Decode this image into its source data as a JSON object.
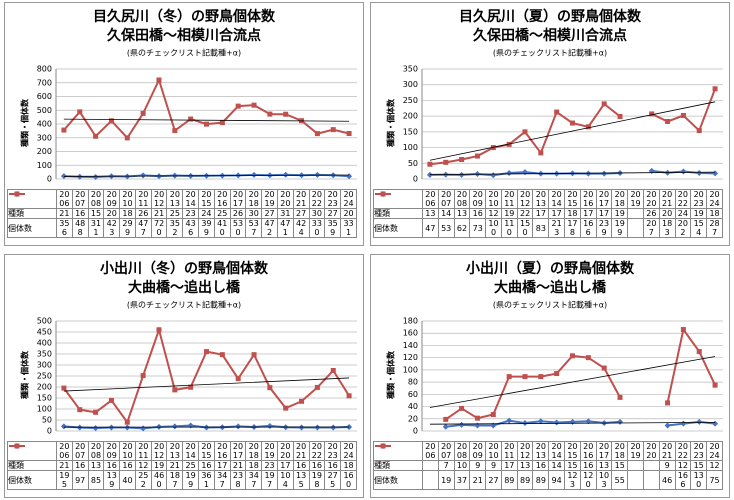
{
  "charts": [
    {
      "chart_data": {
        "type": "line",
        "title": "目久尻川（冬）の野鳥個体数",
        "subtitle": "久保田橋～相模川合流点",
        "note": "(県のチェックリスト記載種+α)",
        "ylabel": "種類・個体数",
        "categories": [
          "2006",
          "2007",
          "2008",
          "2009",
          "2010",
          "2011",
          "2012",
          "2013",
          "2014",
          "2015",
          "2016",
          "2017",
          "2018",
          "2019",
          "2020",
          "2021",
          "2022",
          "2023",
          "2024"
        ],
        "series": [
          {
            "name": "種類",
            "color": "#4472c4",
            "marker": "diamond",
            "values": [
              21,
              16,
              15,
              20,
              18,
              26,
              21,
              25,
              23,
              24,
              25,
              26,
              30,
              27,
              31,
              27,
              30,
              27,
              20
            ]
          },
          {
            "name": "個体数",
            "color": "#c0504d",
            "marker": "square",
            "values": [
              356,
              488,
              311,
              423,
              299,
              477,
              720,
              352,
              436,
              399,
              410,
              530,
              537,
              472,
              471,
              424,
              330,
              359,
              331
            ]
          }
        ],
        "ylim": [
          0,
          800
        ],
        "yticks": [
          0,
          100,
          200,
          300,
          400,
          500,
          600,
          700,
          800
        ],
        "grid": true,
        "trendline": true
      }
    },
    {
      "chart_data": {
        "type": "line",
        "title": "目久尻川（夏）の野鳥個体数",
        "subtitle": "久保田橋～相模川合流点",
        "note": "(県のチェックリスト記載種+α)",
        "ylabel": "種類・個体数",
        "categories": [
          "2006",
          "2007",
          "2008",
          "2009",
          "2010",
          "2011",
          "2012",
          "2013",
          "2014",
          "2015",
          "2016",
          "2017",
          "2018",
          "2019",
          "2020",
          "2021",
          "2022",
          "2023",
          "2024"
        ],
        "series": [
          {
            "name": "種類",
            "color": "#4472c4",
            "marker": "diamond",
            "values": [
              13,
              14,
              13,
              16,
              12,
              19,
              22,
              17,
              17,
              18,
              17,
              17,
              19,
              null,
              26,
              20,
              24,
              19,
              18
            ]
          },
          {
            "name": "個体数",
            "color": "#c0504d",
            "marker": "square",
            "values": [
              47,
              53,
              62,
              73,
              100,
              110,
              150,
              83,
              213,
              178,
              166,
              239,
              199,
              null,
              207,
              183,
              202,
              154,
              287
            ]
          }
        ],
        "ylim": [
          0,
          350
        ],
        "yticks": [
          0,
          50,
          100,
          150,
          200,
          250,
          300,
          350
        ],
        "grid": true,
        "trendline": true
      }
    },
    {
      "chart_data": {
        "type": "line",
        "title": "小出川（冬）の野鳥個体数",
        "subtitle": "大曲橋～追出し橋",
        "note": "(県のチェックリスト記載種+α)",
        "ylabel": "種類・個体数",
        "categories": [
          "2006",
          "2007",
          "2008",
          "2009",
          "2010",
          "2011",
          "2012",
          "2013",
          "2014",
          "2015",
          "2016",
          "2017",
          "2018",
          "2019",
          "2020",
          "2021",
          "2022",
          "2023",
          "2024"
        ],
        "series": [
          {
            "name": "種類",
            "color": "#4472c4",
            "marker": "diamond",
            "values": [
              21,
              16,
              13,
              16,
              16,
              12,
              19,
              21,
              25,
              16,
              17,
              21,
              18,
              23,
              17,
              16,
              16,
              16,
              18
            ]
          },
          {
            "name": "個体数",
            "color": "#c0504d",
            "marker": "square",
            "values": [
              195,
              97,
              85,
              139,
              40,
              252,
              460,
              187,
              199,
              361,
              347,
              238,
              347,
              197,
              104,
              135,
              198,
              275,
              160
            ]
          }
        ],
        "ylim": [
          0,
          500
        ],
        "yticks": [
          0,
          50,
          100,
          150,
          200,
          250,
          300,
          350,
          400,
          450,
          500
        ],
        "grid": true,
        "trendline": true
      }
    },
    {
      "chart_data": {
        "type": "line",
        "title": "小出川（夏）の野鳥個体数",
        "subtitle": "大曲橋～追出し橋",
        "note": "(県のチェックリスト記載種+α)",
        "ylabel": "種類・個体数",
        "categories": [
          "2006",
          "2007",
          "2008",
          "2009",
          "2010",
          "2011",
          "2012",
          "2013",
          "2014",
          "2015",
          "2016",
          "2017",
          "2018",
          "2019",
          "2020",
          "2021",
          "2022",
          "2023",
          "2024"
        ],
        "series": [
          {
            "name": "種類",
            "color": "#4472c4",
            "marker": "diamond",
            "values": [
              null,
              7,
              10,
              9,
              9,
              17,
              13,
              16,
              14,
              15,
              16,
              13,
              15,
              null,
              null,
              9,
              12,
              15,
              12
            ]
          },
          {
            "name": "個体数",
            "color": "#c0504d",
            "marker": "square",
            "values": [
              null,
              19,
              37,
              21,
              27,
              89,
              89,
              89,
              94,
              123,
              120,
              103,
              55,
              null,
              null,
              46,
              166,
              130,
              75
            ]
          }
        ],
        "ylim": [
          0,
          180
        ],
        "yticks": [
          0,
          20,
          40,
          60,
          80,
          100,
          120,
          140,
          160,
          180
        ],
        "grid": true,
        "trendline": true
      }
    }
  ]
}
